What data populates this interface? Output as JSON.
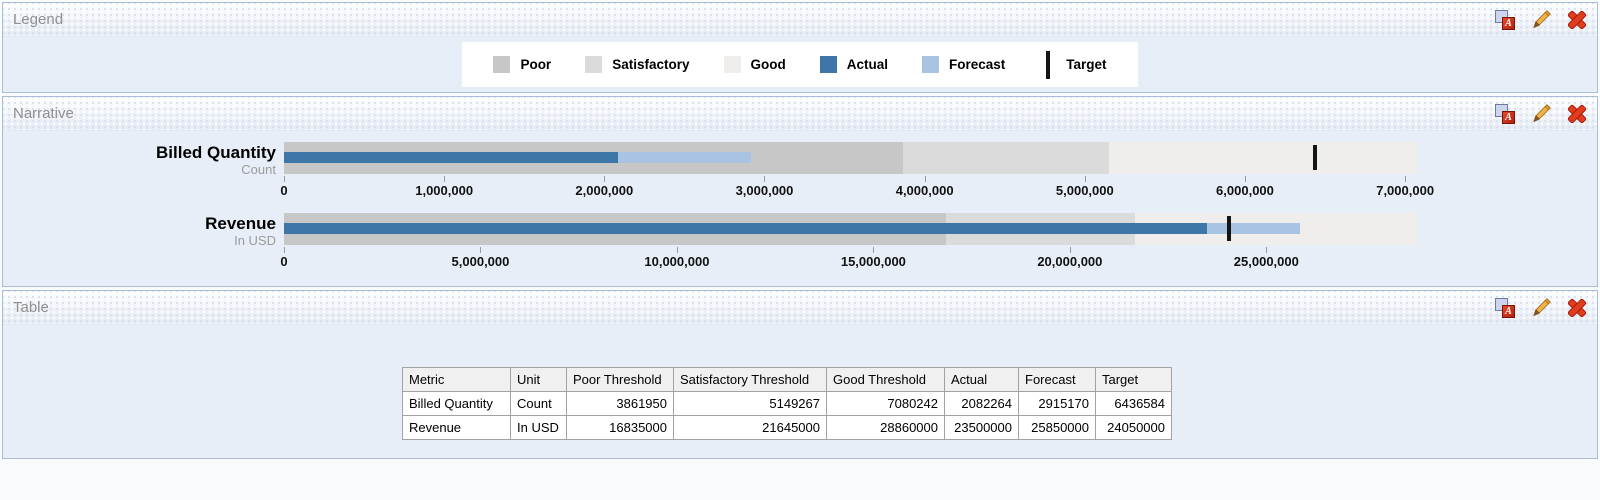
{
  "panels": {
    "legend": {
      "title": "Legend"
    },
    "narrative": {
      "title": "Narrative"
    },
    "table": {
      "title": "Table"
    }
  },
  "toolbar": {
    "icons": [
      "format-icon",
      "edit-pencil-icon",
      "delete-x-icon"
    ]
  },
  "colors": {
    "poor": "#c7c7c7",
    "satisfactory": "#dbdbdb",
    "good": "#efeeec",
    "actual": "#3e76a8",
    "forecast": "#a9c4e3",
    "target": "#141414",
    "panel_body": "#e8eef7",
    "panel_border": "#a9bdd6"
  },
  "legend": {
    "items": [
      {
        "label": "Poor",
        "color_key": "poor",
        "shape": "square"
      },
      {
        "label": "Satisfactory",
        "color_key": "satisfactory",
        "shape": "square"
      },
      {
        "label": "Good",
        "color_key": "good",
        "shape": "square"
      },
      {
        "label": "Actual",
        "color_key": "actual",
        "shape": "square"
      },
      {
        "label": "Forecast",
        "color_key": "forecast",
        "shape": "square"
      },
      {
        "label": "Target",
        "color_key": "target",
        "shape": "bar"
      }
    ]
  },
  "chart_data": [
    {
      "type": "bullet",
      "title": "Billed Quantity",
      "subtitle": "Count",
      "poor_threshold": 3861950,
      "satisfactory_threshold": 5149267,
      "good_threshold": 7080242,
      "actual": 2082264,
      "forecast": 2915170,
      "target": 6436584,
      "scale_max": 7080242,
      "ticks": [
        0,
        1000000,
        2000000,
        3000000,
        4000000,
        5000000,
        6000000,
        7000000
      ]
    },
    {
      "type": "bullet",
      "title": "Revenue",
      "subtitle": "In USD",
      "poor_threshold": 16835000,
      "satisfactory_threshold": 21645000,
      "good_threshold": 28860000,
      "actual": 23500000,
      "forecast": 25850000,
      "target": 24050000,
      "scale_max": 28860000,
      "ticks": [
        0,
        5000000,
        10000000,
        15000000,
        20000000,
        25000000
      ]
    }
  ],
  "table": {
    "headers": [
      "Metric",
      "Unit",
      "Poor Threshold",
      "Satisfactory Threshold",
      "Good Threshold",
      "Actual",
      "Forecast",
      "Target"
    ],
    "rows": [
      [
        "Billed Quantity",
        "Count",
        "3861950",
        "5149267",
        "7080242",
        "2082264",
        "2915170",
        "6436584"
      ],
      [
        "Revenue",
        "In USD",
        "16835000",
        "21645000",
        "28860000",
        "23500000",
        "25850000",
        "24050000"
      ]
    ]
  }
}
